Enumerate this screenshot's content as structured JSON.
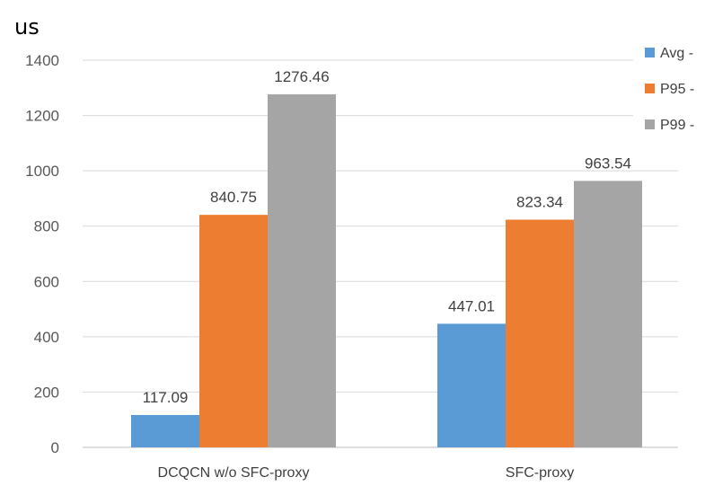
{
  "chart_data": {
    "type": "bar",
    "unit_label": "us",
    "categories": [
      "DCQCN w/o SFC-proxy",
      "SFC-proxy"
    ],
    "series": [
      {
        "name": "Avg -",
        "color": "#5B9BD5",
        "values": [
          117.09,
          447.01
        ],
        "labels": [
          "117.09",
          "447.01"
        ]
      },
      {
        "name": "P95 -",
        "color": "#ED7D31",
        "values": [
          840.75,
          823.34
        ],
        "labels": [
          "840.75",
          "823.34"
        ]
      },
      {
        "name": "P99 -",
        "color": "#A5A5A5",
        "values": [
          1276.46,
          963.54
        ],
        "labels": [
          "1276.46",
          "963.54"
        ]
      }
    ],
    "yticks": [
      "0",
      "200",
      "400",
      "600",
      "800",
      "1000",
      "1200",
      "1400"
    ],
    "ylim": [
      0,
      1400
    ],
    "grid": true,
    "legend_position": "top-right"
  }
}
